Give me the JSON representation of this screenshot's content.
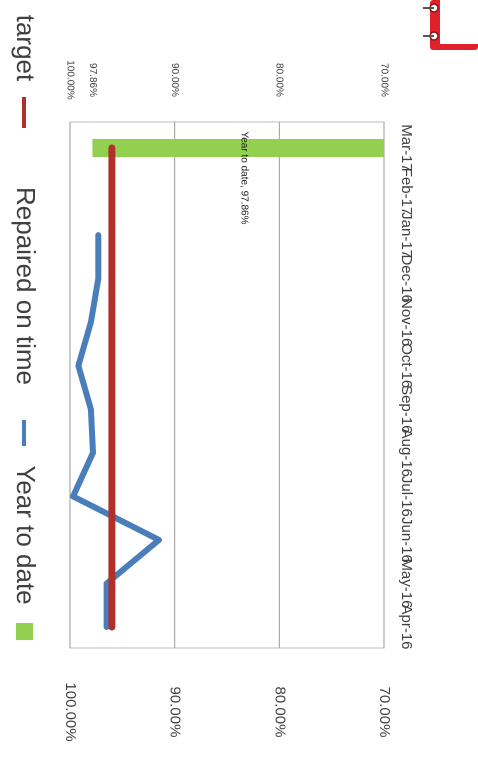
{
  "chart_data": {
    "type": "line",
    "categories": [
      "Apr-16",
      "May-16",
      "Jun-16",
      "Jul-16",
      "Aug-16",
      "Sep-16",
      "Oct-16",
      "Nov-16",
      "Dec-16",
      "Jan-17",
      "Feb-17",
      "Mar-17"
    ],
    "series": [
      {
        "name": "Year to date",
        "kind": "bar",
        "color": "#92d050",
        "values": [
          null,
          null,
          null,
          null,
          null,
          null,
          null,
          null,
          null,
          null,
          null,
          97.86
        ]
      },
      {
        "name": "Repaired on time",
        "kind": "line",
        "color": "#4a7ebb",
        "values": [
          96.5,
          96.5,
          91.5,
          99.7,
          97.8,
          98.0,
          99.2,
          98.0,
          97.3,
          97.3,
          null,
          null
        ]
      },
      {
        "name": "target",
        "kind": "line",
        "color": "#b0312b",
        "values": [
          96.0,
          96.0,
          96.0,
          96.0,
          96.0,
          96.0,
          96.0,
          96.0,
          96.0,
          96.0,
          96.0,
          96.0
        ]
      }
    ],
    "data_label": "Year to date, 97.86%",
    "y_ticks": [
      "100.00%",
      "90.00%",
      "80.00%",
      "70.00%"
    ],
    "ylim": [
      70,
      100
    ],
    "orientation": "rotated 90° clockwise",
    "legend_position": "left",
    "grid": true
  },
  "secondary_axis": {
    "ticks": [
      "100.00%",
      "90.00%",
      "80.00%",
      "70.00%"
    ],
    "data_label_value": "97.86%"
  },
  "decoration": {
    "stamp_icon": "red-binder-clip-icon",
    "stamp_color": "#e0202a"
  }
}
